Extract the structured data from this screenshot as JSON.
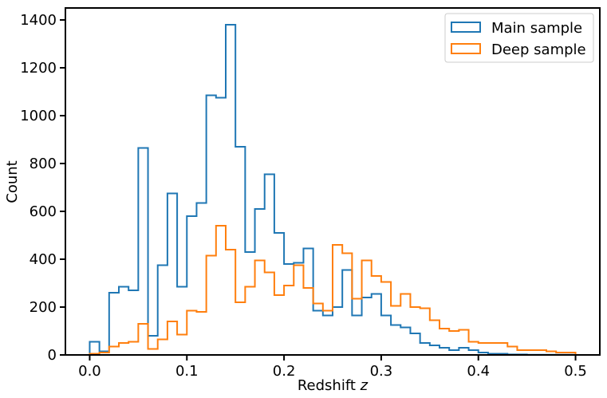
{
  "colors": {
    "main": "#1f77b4",
    "deep": "#ff7f0e"
  },
  "chart_data": {
    "type": "histogram-step",
    "title": "",
    "xlabel": "Redshift",
    "xlabel_var": "z",
    "ylabel": "Count",
    "xlim": [
      -0.025,
      0.525
    ],
    "ylim": [
      0,
      1450
    ],
    "xticks": [
      "0.0",
      "0.1",
      "0.2",
      "0.3",
      "0.4",
      "0.5"
    ],
    "yticks": [
      "0",
      "200",
      "400",
      "600",
      "800",
      "1000",
      "1200",
      "1400"
    ],
    "legend_position": "top-right",
    "bin_width": 0.01,
    "series": [
      {
        "name": "Main sample",
        "color_key": "main",
        "bin_start": 0.0,
        "values": [
          55,
          15,
          260,
          285,
          270,
          865,
          80,
          375,
          675,
          285,
          580,
          635,
          1085,
          1075,
          1380,
          870,
          430,
          610,
          755,
          510,
          380,
          385,
          445,
          185,
          165,
          200,
          355,
          165,
          240,
          255,
          165,
          125,
          115,
          90,
          50,
          40,
          30,
          20,
          30,
          20,
          10,
          5,
          5,
          2,
          2,
          1,
          1,
          1,
          1,
          1
        ]
      },
      {
        "name": "Deep sample",
        "color_key": "deep",
        "bin_start": 0.0,
        "values": [
          5,
          10,
          35,
          50,
          55,
          130,
          25,
          65,
          140,
          85,
          185,
          180,
          415,
          540,
          440,
          220,
          285,
          395,
          345,
          250,
          290,
          375,
          280,
          215,
          185,
          460,
          425,
          235,
          395,
          330,
          305,
          205,
          255,
          200,
          195,
          145,
          110,
          100,
          105,
          55,
          50,
          50,
          50,
          35,
          20,
          20,
          20,
          15,
          10,
          10
        ]
      }
    ]
  }
}
